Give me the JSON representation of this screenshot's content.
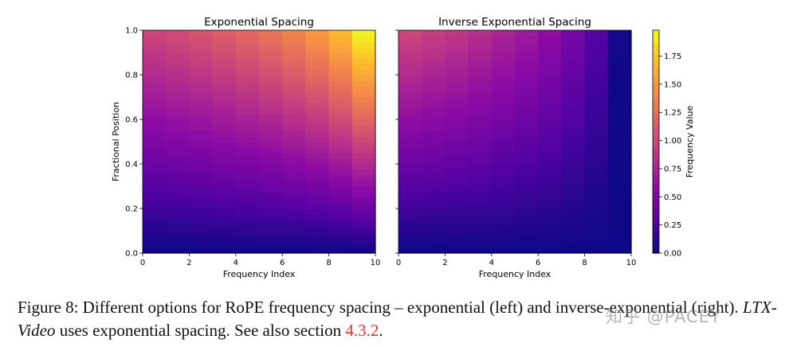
{
  "chart_data": [
    {
      "type": "heatmap",
      "title": "Exponential Spacing",
      "xlabel": "Frequency Index",
      "ylabel": "Fractional Position",
      "xlim": [
        0,
        10
      ],
      "ylim": [
        0,
        1
      ],
      "x_ticks": [
        "0",
        "2",
        "4",
        "6",
        "8",
        "10"
      ],
      "y_ticks": [
        "0.0",
        "0.2",
        "0.4",
        "0.6",
        "0.8",
        "1.0"
      ],
      "x": [
        0,
        1,
        2,
        3,
        4,
        5,
        6,
        7,
        8,
        9
      ],
      "column_frequencies": [
        0.99,
        1.04,
        1.09,
        1.15,
        1.22,
        1.3,
        1.4,
        1.52,
        1.7,
        1.98
      ],
      "value_formula": "fractional_position * column_frequency",
      "colormap": "plasma"
    },
    {
      "type": "heatmap",
      "title": "Inverse Exponential Spacing",
      "xlabel": "Frequency Index",
      "ylabel": "",
      "xlim": [
        0,
        10
      ],
      "ylim": [
        0,
        1
      ],
      "x_ticks": [
        "0",
        "2",
        "4",
        "6",
        "8",
        "10"
      ],
      "x": [
        0,
        1,
        2,
        3,
        4,
        5,
        6,
        7,
        8,
        9
      ],
      "column_frequencies": [
        0.99,
        0.94,
        0.89,
        0.83,
        0.76,
        0.68,
        0.59,
        0.46,
        0.29,
        0.02
      ],
      "value_formula": "fractional_position * column_frequency",
      "colormap": "plasma"
    }
  ],
  "colorbar": {
    "label": "Frequency Value",
    "range": [
      0,
      1.98
    ],
    "ticks": [
      "0.00",
      "0.25",
      "0.50",
      "0.75",
      "1.00",
      "1.25",
      "1.50",
      "1.75"
    ],
    "tick_values": [
      0,
      0.25,
      0.5,
      0.75,
      1.0,
      1.25,
      1.5,
      1.75
    ]
  },
  "caption": {
    "prefix": "Figure 8: Different options for RoPE frequency spacing – exponential (left) and inverse-exponential (right). ",
    "italic": "LTX-Video",
    "middle": " uses exponential spacing. See also section ",
    "ref": "4.3.2",
    "suffix": "."
  },
  "watermark": "知乎 @PACEY"
}
